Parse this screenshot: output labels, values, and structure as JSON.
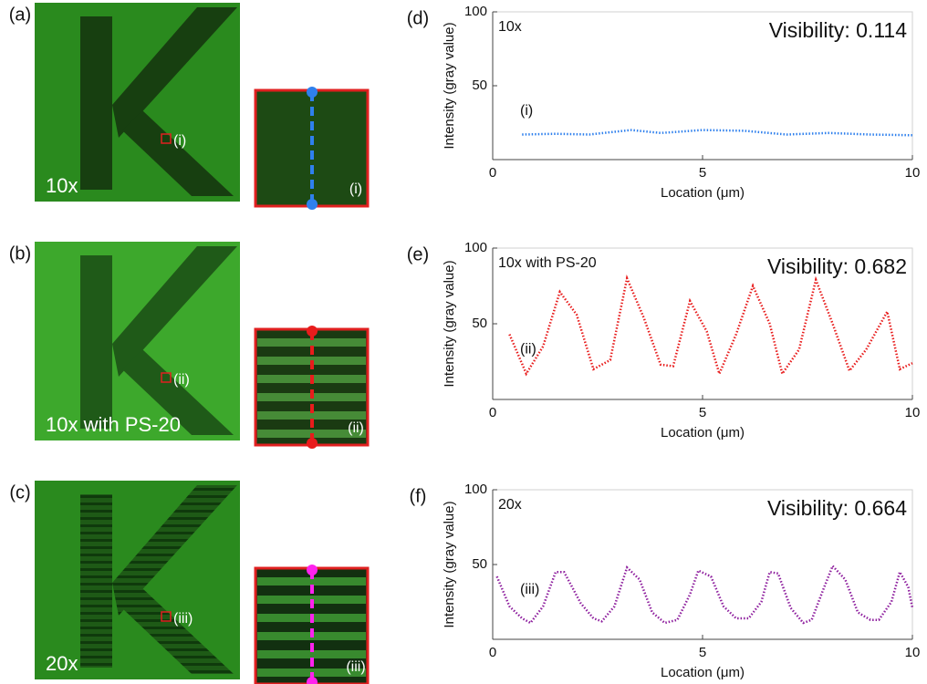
{
  "images": [
    {
      "panel": "(a)",
      "label": "10x",
      "marker": "(i)",
      "inset_label": "(i)",
      "line_color": "#2f80ed"
    },
    {
      "panel": "(b)",
      "label": "10x with PS-20",
      "marker": "(ii)",
      "inset_label": "(ii)",
      "line_color": "#e81c1c"
    },
    {
      "panel": "(c)",
      "label": "20x",
      "marker": "(iii)",
      "inset_label": "(iii)",
      "line_color": "#ff22ee"
    }
  ],
  "chart_data": [
    {
      "type": "line",
      "panel": "(d)",
      "title": "10x",
      "annotation": "Visibility: 0.114",
      "curve_label": "(i)",
      "x_label": "Location (μm)",
      "y_label": "Intensity (gray value)",
      "xlim": [
        0,
        10
      ],
      "ylim": [
        0,
        100
      ],
      "xticks": [
        0,
        5,
        10
      ],
      "yticks": [
        50,
        100
      ],
      "series": [
        {
          "color": "#2f80ed",
          "x": [
            0.7,
            1.5,
            2.3,
            3.3,
            4.0,
            5.0,
            6.0,
            7.0,
            8.0,
            9.0,
            10.0
          ],
          "values": [
            17,
            17.5,
            17,
            20,
            18,
            20,
            19.5,
            17,
            18,
            17,
            16.5
          ]
        }
      ]
    },
    {
      "type": "line",
      "panel": "(e)",
      "title": "10x with PS-20",
      "annotation": "Visibility: 0.682",
      "curve_label": "(ii)",
      "x_label": "Location (μm)",
      "y_label": "Intensity (gray value)",
      "xlim": [
        0,
        10
      ],
      "ylim": [
        0,
        100
      ],
      "xticks": [
        0,
        5,
        10
      ],
      "yticks": [
        50,
        100
      ],
      "series": [
        {
          "color": "#e81c1c",
          "x": [
            0.4,
            0.8,
            1.2,
            1.6,
            2.0,
            2.4,
            2.8,
            3.2,
            3.6,
            4.0,
            4.3,
            4.7,
            5.1,
            5.4,
            5.8,
            6.2,
            6.6,
            6.9,
            7.3,
            7.7,
            8.1,
            8.5,
            8.9,
            9.4,
            9.7,
            10.0
          ],
          "values": [
            43,
            17,
            35,
            71,
            56,
            20,
            26,
            80,
            54,
            23,
            22,
            65,
            45,
            17,
            43,
            75,
            50,
            17,
            33,
            79,
            50,
            19,
            33,
            58,
            20,
            24
          ]
        }
      ]
    },
    {
      "type": "line",
      "panel": "(f)",
      "title": "20x",
      "annotation": "Visibility: 0.664",
      "curve_label": "(iii)",
      "x_label": "Location (μm)",
      "y_label": "Intensity (gray value)",
      "xlim": [
        0,
        10
      ],
      "ylim": [
        0,
        100
      ],
      "xticks": [
        0,
        5,
        10
      ],
      "yticks": [
        50,
        100
      ],
      "series": [
        {
          "color": "#8e1f9e",
          "x": [
            0.1,
            0.4,
            0.7,
            0.9,
            1.2,
            1.5,
            1.7,
            2.1,
            2.4,
            2.6,
            2.9,
            3.2,
            3.5,
            3.8,
            4.1,
            4.4,
            4.7,
            4.9,
            5.2,
            5.5,
            5.8,
            6.1,
            6.4,
            6.6,
            6.8,
            7.1,
            7.4,
            7.6,
            7.9,
            8.1,
            8.4,
            8.7,
            9.0,
            9.2,
            9.5,
            9.7,
            9.9,
            10.0
          ],
          "values": [
            42,
            22,
            14,
            11,
            22,
            45,
            45,
            24,
            14,
            12,
            22,
            48,
            40,
            18,
            11,
            13,
            30,
            46,
            42,
            22,
            14,
            14,
            25,
            45,
            44,
            21,
            11,
            13,
            35,
            49,
            40,
            18,
            13,
            13,
            25,
            45,
            35,
            21
          ]
        }
      ]
    }
  ]
}
